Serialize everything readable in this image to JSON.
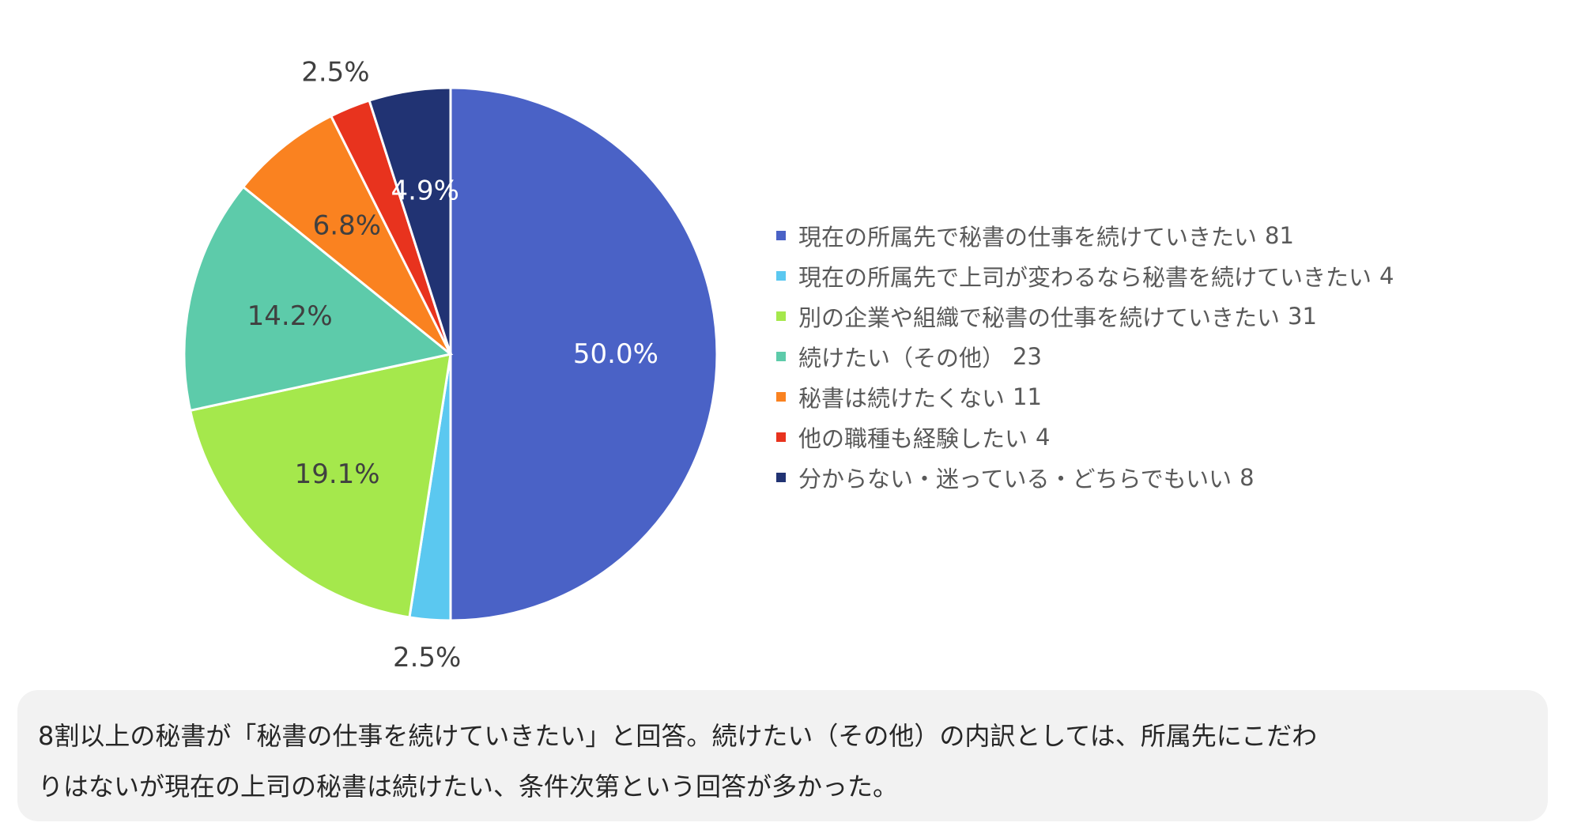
{
  "chart_data": {
    "type": "pie",
    "start_angle_deg": 0,
    "direction": "clockwise",
    "slices": [
      {
        "label": "現在の所属先で秘書の仕事を続けていきたい",
        "count": 81,
        "percent_label": "50.0%",
        "color": "#4A62C6",
        "label_color": "#ffffff",
        "label_position": "inside"
      },
      {
        "label": "現在の所属先で上司が変わるなら秘書を続けていきたい",
        "count": 4,
        "percent_label": "2.5%",
        "color": "#5BC8F0",
        "label_color": "#404040",
        "label_position": "outside"
      },
      {
        "label": "別の企業や組織で秘書の仕事を続けていきたい",
        "count": 31,
        "percent_label": "19.1%",
        "color": "#A5E84C",
        "label_color": "#404040",
        "label_position": "inside"
      },
      {
        "label": "続けたい（その他）",
        "count": 23,
        "percent_label": "14.2%",
        "color": "#5DCBAA",
        "label_color": "#404040",
        "label_position": "inside"
      },
      {
        "label": "秘書は続けたくない",
        "count": 11,
        "percent_label": "6.8%",
        "color": "#FA8220",
        "label_color": "#404040",
        "label_position": "inside"
      },
      {
        "label": "他の職種も経験したい",
        "count": 4,
        "percent_label": "2.5%",
        "color": "#E8331E",
        "label_color": "#404040",
        "label_position": "outside"
      },
      {
        "label": "分からない・迷っている・どちらでもいい",
        "count": 8,
        "percent_label": "4.9%",
        "color": "#213373",
        "label_color": "#ffffff",
        "label_position": "inside"
      }
    ],
    "legend_placement": "right"
  },
  "note": {
    "line1": "8割以上の秘書が「秘書の仕事を続けていきたい」と回答。続けたい（その他）の内訳としては、所属先にこだわ",
    "line2": "りはないが現在の上司の秘書は続けたい、条件次第という回答が多かった。"
  }
}
